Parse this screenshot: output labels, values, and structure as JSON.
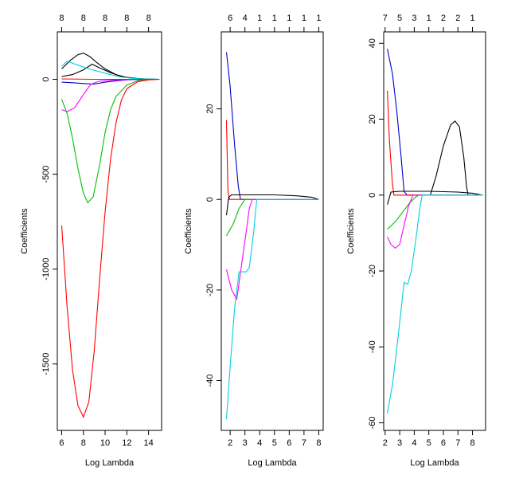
{
  "chart_data": [
    {
      "type": "line",
      "xlabel": "Log Lambda",
      "ylabel": "Coefficients",
      "xlim": [
        5.6,
        15.2
      ],
      "ylim": [
        -1850,
        250
      ],
      "xticks": [
        6,
        8,
        10,
        12,
        14
      ],
      "xtick_labels": [
        "6",
        "8",
        "10",
        "12",
        "14"
      ],
      "yticks": [
        0,
        -500,
        -1000,
        -1500
      ],
      "ytick_labels": [
        "0",
        "-500",
        "-1000",
        "-1500"
      ],
      "top_axis": {
        "positions": [
          6,
          8,
          10,
          12,
          14
        ],
        "labels": [
          "8",
          "8",
          "8",
          "8",
          "8"
        ]
      },
      "series": [
        {
          "name": "black",
          "color": "#000000",
          "points": [
            [
              6.0,
              55
            ],
            [
              6.8,
              100
            ],
            [
              7.5,
              130
            ],
            [
              8.0,
              138
            ],
            [
              8.6,
              120
            ],
            [
              9.2,
              90
            ],
            [
              10,
              55
            ],
            [
              11,
              25
            ],
            [
              12,
              10
            ],
            [
              13,
              4
            ],
            [
              14,
              1
            ],
            [
              15,
              0
            ]
          ]
        },
        {
          "name": "black-2",
          "color": "#000000",
          "points": [
            [
              6.0,
              15
            ],
            [
              7.0,
              25
            ],
            [
              8.0,
              50
            ],
            [
              8.8,
              80
            ],
            [
              9.5,
              60
            ],
            [
              10.5,
              35
            ],
            [
              11.5,
              15
            ],
            [
              12.5,
              6
            ],
            [
              13.5,
              2
            ],
            [
              15,
              0
            ]
          ]
        },
        {
          "name": "cyan",
          "color": "#00cfe0",
          "points": [
            [
              6.0,
              70
            ],
            [
              6.5,
              95
            ],
            [
              7.5,
              75
            ],
            [
              8.5,
              55
            ],
            [
              9.5,
              40
            ],
            [
              10.5,
              25
            ],
            [
              11.5,
              12
            ],
            [
              12.5,
              5
            ],
            [
              13.5,
              2
            ],
            [
              15,
              0
            ]
          ]
        },
        {
          "name": "red-flat",
          "color": "#ff0000",
          "points": [
            [
              6.0,
              2
            ],
            [
              9,
              0
            ],
            [
              12,
              0
            ],
            [
              15,
              0
            ]
          ]
        },
        {
          "name": "blue",
          "color": "#0000c8",
          "points": [
            [
              6.0,
              -15
            ],
            [
              7.0,
              -18
            ],
            [
              8.0,
              -22
            ],
            [
              9.0,
              -25
            ],
            [
              10.0,
              -15
            ],
            [
              11.0,
              -8
            ],
            [
              12.0,
              -3
            ],
            [
              13,
              -1
            ],
            [
              15,
              0
            ]
          ]
        },
        {
          "name": "magenta",
          "color": "#ff00ff",
          "points": [
            [
              6.0,
              -160
            ],
            [
              6.5,
              -170
            ],
            [
              7.2,
              -150
            ],
            [
              8.0,
              -80
            ],
            [
              8.7,
              -25
            ],
            [
              9.5,
              -10
            ],
            [
              10.5,
              -5
            ],
            [
              12,
              -2
            ],
            [
              15,
              0
            ]
          ]
        },
        {
          "name": "green",
          "color": "#00c000",
          "points": [
            [
              6.0,
              -105
            ],
            [
              6.5,
              -180
            ],
            [
              7.0,
              -310
            ],
            [
              7.5,
              -470
            ],
            [
              8.0,
              -600
            ],
            [
              8.4,
              -650
            ],
            [
              8.9,
              -620
            ],
            [
              9.5,
              -450
            ],
            [
              10,
              -280
            ],
            [
              10.5,
              -160
            ],
            [
              11,
              -90
            ],
            [
              12,
              -30
            ],
            [
              13,
              -8
            ],
            [
              14,
              -2
            ],
            [
              15,
              0
            ]
          ]
        },
        {
          "name": "red",
          "color": "#ff0000",
          "points": [
            [
              6.0,
              -770
            ],
            [
              6.5,
              -1200
            ],
            [
              7.0,
              -1530
            ],
            [
              7.5,
              -1720
            ],
            [
              8.0,
              -1780
            ],
            [
              8.5,
              -1700
            ],
            [
              9.0,
              -1430
            ],
            [
              9.5,
              -1050
            ],
            [
              10.0,
              -700
            ],
            [
              10.5,
              -420
            ],
            [
              11,
              -230
            ],
            [
              11.5,
              -110
            ],
            [
              12,
              -50
            ],
            [
              13,
              -12
            ],
            [
              14,
              -3
            ],
            [
              15,
              0
            ]
          ]
        }
      ]
    },
    {
      "type": "line",
      "xlabel": "Log Lambda",
      "ylabel": "Coefficients",
      "xlim": [
        1.4,
        8.3
      ],
      "ylim": [
        -51,
        37
      ],
      "xticks": [
        2,
        3,
        4,
        5,
        6,
        7,
        8
      ],
      "xtick_labels": [
        "2",
        "3",
        "4",
        "5",
        "6",
        "7",
        "8"
      ],
      "yticks": [
        20,
        0,
        -20,
        -40
      ],
      "ytick_labels": [
        "20",
        "0",
        "-20",
        "-40"
      ],
      "top_axis": {
        "positions": [
          2,
          3,
          4,
          5,
          6,
          7,
          8
        ],
        "labels": [
          "6",
          "4",
          "1",
          "1",
          "1",
          "1",
          "1"
        ]
      },
      "series": [
        {
          "name": "blue",
          "color": "#0000c8",
          "points": [
            [
              1.75,
              32.5
            ],
            [
              2.0,
              25
            ],
            [
              2.3,
              12
            ],
            [
              2.55,
              3
            ],
            [
              2.7,
              0
            ],
            [
              3.0,
              0
            ],
            [
              8.0,
              0
            ]
          ]
        },
        {
          "name": "red",
          "color": "#ff0000",
          "points": [
            [
              1.75,
              17.5
            ],
            [
              1.85,
              2
            ],
            [
              1.95,
              0
            ],
            [
              8.0,
              0
            ]
          ]
        },
        {
          "name": "black",
          "color": "#000000",
          "points": [
            [
              1.75,
              -3.5
            ],
            [
              1.9,
              0.5
            ],
            [
              2.1,
              1.0
            ],
            [
              3,
              1.0
            ],
            [
              5,
              1.0
            ],
            [
              6.5,
              0.8
            ],
            [
              7.5,
              0.5
            ],
            [
              8,
              0
            ]
          ]
        },
        {
          "name": "green",
          "color": "#00c000",
          "points": [
            [
              1.75,
              -8
            ],
            [
              2.2,
              -5.5
            ],
            [
              2.6,
              -2
            ],
            [
              3.0,
              0
            ],
            [
              8,
              0
            ]
          ]
        },
        {
          "name": "magenta",
          "color": "#ff00ff",
          "points": [
            [
              1.75,
              -15.5
            ],
            [
              2.1,
              -20
            ],
            [
              2.45,
              -22
            ],
            [
              2.75,
              -15
            ],
            [
              3.05,
              -8
            ],
            [
              3.3,
              -2
            ],
            [
              3.5,
              0
            ],
            [
              8,
              0
            ]
          ]
        },
        {
          "name": "cyan",
          "color": "#00cfe0",
          "points": [
            [
              1.75,
              -48.5
            ],
            [
              2.0,
              -37
            ],
            [
              2.3,
              -24
            ],
            [
              2.6,
              -16
            ],
            [
              3.1,
              -16
            ],
            [
              3.3,
              -15
            ],
            [
              3.6,
              -7
            ],
            [
              3.8,
              0
            ],
            [
              8,
              0
            ]
          ]
        }
      ]
    },
    {
      "type": "line",
      "xlabel": "Log Lambda",
      "ylabel": "Coefficients",
      "xlim": [
        1.9,
        8.9
      ],
      "ylim": [
        -62,
        43
      ],
      "xticks": [
        2,
        3,
        4,
        5,
        6,
        7,
        8
      ],
      "xtick_labels": [
        "2",
        "3",
        "4",
        "5",
        "6",
        "7",
        "8"
      ],
      "yticks": [
        40,
        20,
        0,
        -20,
        -40,
        -60
      ],
      "ytick_labels": [
        "40",
        "20",
        "0",
        "-20",
        "-40",
        "-60"
      ],
      "top_axis": {
        "positions": [
          2,
          3,
          4,
          5,
          6,
          7,
          8
        ],
        "labels": [
          "7",
          "5",
          "3",
          "1",
          "2",
          "2",
          "1"
        ]
      },
      "series": [
        {
          "name": "blue",
          "color": "#0000c8",
          "points": [
            [
              2.15,
              38.5
            ],
            [
              2.5,
              32
            ],
            [
              2.8,
              22
            ],
            [
              3.1,
              10
            ],
            [
              3.3,
              1
            ],
            [
              3.5,
              0
            ],
            [
              8.7,
              0
            ]
          ]
        },
        {
          "name": "red",
          "color": "#ff0000",
          "points": [
            [
              2.15,
              27.5
            ],
            [
              2.3,
              14
            ],
            [
              2.5,
              3
            ],
            [
              2.6,
              0
            ],
            [
              8.7,
              0
            ]
          ]
        },
        {
          "name": "black",
          "color": "#000000",
          "points": [
            [
              2.15,
              -2.5
            ],
            [
              2.4,
              0.8
            ],
            [
              3.0,
              1.0
            ],
            [
              5,
              1.0
            ],
            [
              6,
              0.9
            ],
            [
              7,
              0.8
            ],
            [
              8,
              0.5
            ],
            [
              8.7,
              0
            ]
          ]
        },
        {
          "name": "black-hump",
          "color": "#000000",
          "points": [
            [
              5.1,
              0
            ],
            [
              5.5,
              5
            ],
            [
              6.0,
              13
            ],
            [
              6.5,
              18.5
            ],
            [
              6.8,
              19.5
            ],
            [
              7.1,
              18
            ],
            [
              7.4,
              10
            ],
            [
              7.6,
              2
            ],
            [
              7.7,
              0
            ]
          ]
        },
        {
          "name": "green",
          "color": "#00c000",
          "points": [
            [
              2.15,
              -9
            ],
            [
              2.7,
              -7
            ],
            [
              3.2,
              -4.5
            ],
            [
              3.7,
              -2
            ],
            [
              4.1,
              -0.5
            ],
            [
              4.3,
              0
            ],
            [
              8.7,
              0
            ]
          ]
        },
        {
          "name": "magenta",
          "color": "#ff00ff",
          "points": [
            [
              2.15,
              -11
            ],
            [
              2.4,
              -13
            ],
            [
              2.7,
              -14
            ],
            [
              3.0,
              -13
            ],
            [
              3.3,
              -8
            ],
            [
              3.6,
              -3
            ],
            [
              3.9,
              0
            ],
            [
              8.7,
              0
            ]
          ]
        },
        {
          "name": "cyan",
          "color": "#00cfe0",
          "points": [
            [
              2.15,
              -57.5
            ],
            [
              2.5,
              -50
            ],
            [
              2.9,
              -37
            ],
            [
              3.3,
              -23
            ],
            [
              3.55,
              -23.5
            ],
            [
              3.8,
              -20
            ],
            [
              4.1,
              -12
            ],
            [
              4.4,
              -3
            ],
            [
              4.55,
              0
            ],
            [
              8.7,
              0
            ]
          ]
        }
      ]
    }
  ]
}
